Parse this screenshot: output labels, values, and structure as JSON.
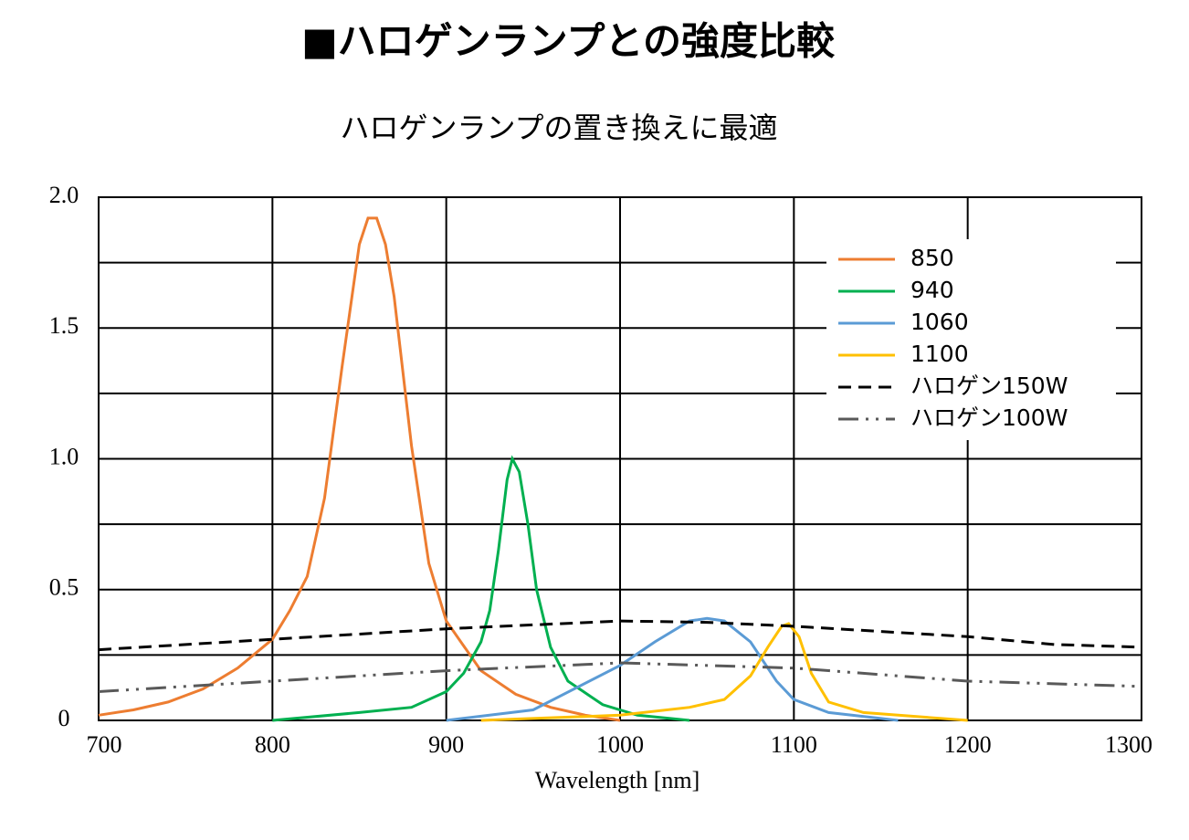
{
  "chart_data": {
    "type": "line",
    "title": "■ハロゲンランプとの強度比較",
    "subtitle": "ハロゲンランプの置き換えに最適",
    "x_label": "Wavelength [nm]",
    "xlim": [
      700,
      1300
    ],
    "xticks": [
      700,
      800,
      900,
      1000,
      1100,
      1200,
      1300
    ],
    "ylim": [
      0,
      2
    ],
    "yticks": [
      0,
      0.5,
      {
        "value": 1,
        "label": "1.0"
      },
      1.5,
      {
        "value": 2,
        "label": "2.0"
      }
    ],
    "y_minor_ticks": [
      0.25,
      0.75,
      1.25,
      1.75
    ],
    "grid": true,
    "legend": "upper right",
    "series": [
      {
        "name": "850",
        "color": "#ed7d31",
        "style": "solid",
        "x": [
          700,
          720,
          740,
          760,
          780,
          800,
          810,
          820,
          830,
          840,
          850,
          855,
          860,
          865,
          870,
          880,
          890,
          900,
          920,
          940,
          960,
          980,
          1000
        ],
        "values": [
          0.02,
          0.04,
          0.07,
          0.12,
          0.2,
          0.31,
          0.42,
          0.55,
          0.85,
          1.35,
          1.82,
          1.92,
          1.92,
          1.82,
          1.62,
          1.05,
          0.6,
          0.38,
          0.19,
          0.1,
          0.05,
          0.02,
          0
        ]
      },
      {
        "name": "940",
        "color": "#00b050",
        "style": "solid",
        "x": [
          800,
          850,
          880,
          900,
          910,
          920,
          925,
          930,
          935,
          938,
          942,
          947,
          952,
          960,
          970,
          990,
          1010,
          1040
        ],
        "values": [
          0,
          0.03,
          0.05,
          0.11,
          0.18,
          0.3,
          0.42,
          0.65,
          0.92,
          1.0,
          0.95,
          0.75,
          0.5,
          0.28,
          0.15,
          0.06,
          0.02,
          0
        ]
      },
      {
        "name": "1060",
        "color": "#5b9bd5",
        "style": "solid",
        "x": [
          900,
          950,
          1000,
          1020,
          1040,
          1050,
          1060,
          1075,
          1090,
          1100,
          1120,
          1160
        ],
        "values": [
          0,
          0.04,
          0.21,
          0.3,
          0.38,
          0.39,
          0.38,
          0.3,
          0.15,
          0.08,
          0.03,
          0
        ]
      },
      {
        "name": "1100",
        "color": "#ffc000",
        "style": "solid",
        "x": [
          920,
          1000,
          1040,
          1060,
          1075,
          1085,
          1093,
          1097,
          1103,
          1110,
          1120,
          1140,
          1200
        ],
        "values": [
          0,
          0.02,
          0.05,
          0.08,
          0.17,
          0.28,
          0.36,
          0.37,
          0.32,
          0.18,
          0.07,
          0.03,
          0
        ]
      },
      {
        "name": "ハロゲン150W",
        "color": "#000000",
        "style": "dashed",
        "x": [
          700,
          800,
          900,
          1000,
          1050,
          1100,
          1200,
          1250,
          1300
        ],
        "values": [
          0.27,
          0.31,
          0.35,
          0.38,
          0.375,
          0.36,
          0.32,
          0.29,
          0.28
        ]
      },
      {
        "name": "ハロゲン100W",
        "color": "#595959",
        "style": "dash-dot-dot",
        "x": [
          700,
          800,
          900,
          1000,
          1100,
          1200,
          1300
        ],
        "values": [
          0.11,
          0.15,
          0.19,
          0.22,
          0.2,
          0.15,
          0.13
        ]
      }
    ]
  }
}
